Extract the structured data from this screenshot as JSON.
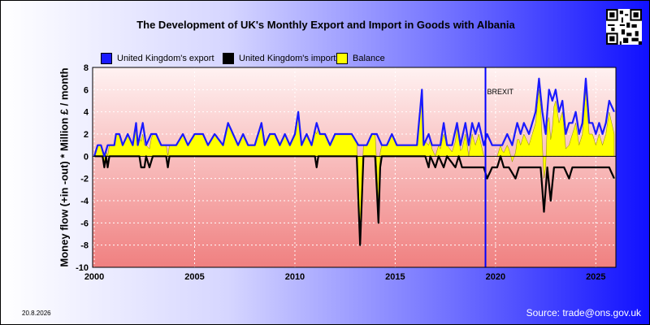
{
  "chart_data": {
    "type": "line",
    "title": "The Development of UK's Monthly Export and Import in Goods with Albania",
    "ylabel": "Money flow (+in -out) * Million £ / month",
    "xlabel": "",
    "x_ticks": [
      "2000",
      "2005",
      "2010",
      "2015",
      "2020",
      "2025"
    ],
    "y_ticks": [
      "8",
      "6",
      "4",
      "2",
      "0",
      "-2",
      "-4",
      "-6",
      "-8",
      "-10"
    ],
    "xlim": [
      "2000-01",
      "2025-12"
    ],
    "ylim": [
      -10,
      8
    ],
    "grid": true,
    "legend_position": "top",
    "annotation": {
      "label": "BREXIT",
      "x": "2019-07"
    },
    "series": [
      {
        "name": "United Kingdom's export",
        "color": "#1a1aff",
        "points": [
          [
            "2000-01",
            0
          ],
          [
            "2000-03",
            1
          ],
          [
            "2000-05",
            1
          ],
          [
            "2000-07",
            0
          ],
          [
            "2000-09",
            1
          ],
          [
            "2001-01",
            1
          ],
          [
            "2001-02",
            2
          ],
          [
            "2001-04",
            2
          ],
          [
            "2001-06",
            1
          ],
          [
            "2001-09",
            2
          ],
          [
            "2001-12",
            1
          ],
          [
            "2002-02",
            3
          ],
          [
            "2002-03",
            1
          ],
          [
            "2002-06",
            3
          ],
          [
            "2002-08",
            1
          ],
          [
            "2002-11",
            2
          ],
          [
            "2003-02",
            2
          ],
          [
            "2003-05",
            1
          ],
          [
            "2003-08",
            1
          ],
          [
            "2004-02",
            1
          ],
          [
            "2004-06",
            2
          ],
          [
            "2004-09",
            1
          ],
          [
            "2005-01",
            2
          ],
          [
            "2005-06",
            2
          ],
          [
            "2005-09",
            1
          ],
          [
            "2006-01",
            2
          ],
          [
            "2006-06",
            1
          ],
          [
            "2006-09",
            3
          ],
          [
            "2006-12",
            2
          ],
          [
            "2007-03",
            1
          ],
          [
            "2007-06",
            2
          ],
          [
            "2007-09",
            1
          ],
          [
            "2008-01",
            1
          ],
          [
            "2008-05",
            3
          ],
          [
            "2008-07",
            1
          ],
          [
            "2008-10",
            2
          ],
          [
            "2009-01",
            2
          ],
          [
            "2009-04",
            1
          ],
          [
            "2009-07",
            2
          ],
          [
            "2009-10",
            1
          ],
          [
            "2010-01",
            2
          ],
          [
            "2010-03",
            4
          ],
          [
            "2010-05",
            1
          ],
          [
            "2010-08",
            2
          ],
          [
            "2010-11",
            1
          ],
          [
            "2011-02",
            3
          ],
          [
            "2011-04",
            2
          ],
          [
            "2011-07",
            2
          ],
          [
            "2011-10",
            1
          ],
          [
            "2012-01",
            2
          ],
          [
            "2012-06",
            2
          ],
          [
            "2012-11",
            2
          ],
          [
            "2013-03",
            1
          ],
          [
            "2013-05",
            1
          ],
          [
            "2013-08",
            1
          ],
          [
            "2013-11",
            2
          ],
          [
            "2014-02",
            2
          ],
          [
            "2014-05",
            1
          ],
          [
            "2014-08",
            1
          ],
          [
            "2014-11",
            2
          ],
          [
            "2015-02",
            1
          ],
          [
            "2015-05",
            1
          ],
          [
            "2015-08",
            1
          ],
          [
            "2015-11",
            1
          ],
          [
            "2016-02",
            1
          ],
          [
            "2016-05",
            6
          ],
          [
            "2016-06",
            1
          ],
          [
            "2016-09",
            2
          ],
          [
            "2016-11",
            1
          ],
          [
            "2017-02",
            1
          ],
          [
            "2017-04",
            1
          ],
          [
            "2017-06",
            3
          ],
          [
            "2017-08",
            1
          ],
          [
            "2017-11",
            1
          ],
          [
            "2018-02",
            3
          ],
          [
            "2018-04",
            1
          ],
          [
            "2018-07",
            3
          ],
          [
            "2018-09",
            1
          ],
          [
            "2018-11",
            3
          ],
          [
            "2019-01",
            2
          ],
          [
            "2019-03",
            3
          ],
          [
            "2019-06",
            1
          ],
          [
            "2019-08",
            2
          ],
          [
            "2019-11",
            1
          ],
          [
            "2020-02",
            1
          ],
          [
            "2020-05",
            1
          ],
          [
            "2020-08",
            2
          ],
          [
            "2020-11",
            1
          ],
          [
            "2021-02",
            3
          ],
          [
            "2021-04",
            2
          ],
          [
            "2021-06",
            3
          ],
          [
            "2021-09",
            2
          ],
          [
            "2022-01",
            4
          ],
          [
            "2022-03",
            7
          ],
          [
            "2022-05",
            4
          ],
          [
            "2022-07",
            2
          ],
          [
            "2022-09",
            6
          ],
          [
            "2022-11",
            5
          ],
          [
            "2023-01",
            6
          ],
          [
            "2023-03",
            4
          ],
          [
            "2023-05",
            5
          ],
          [
            "2023-07",
            2
          ],
          [
            "2023-09",
            3
          ],
          [
            "2023-11",
            3
          ],
          [
            "2024-01",
            4
          ],
          [
            "2024-03",
            2
          ],
          [
            "2024-05",
            3
          ],
          [
            "2024-07",
            7
          ],
          [
            "2024-09",
            3
          ],
          [
            "2024-11",
            3
          ],
          [
            "2025-01",
            2
          ],
          [
            "2025-03",
            3
          ],
          [
            "2025-05",
            2
          ],
          [
            "2025-07",
            3
          ],
          [
            "2025-09",
            5
          ],
          [
            "2025-12",
            4
          ]
        ]
      },
      {
        "name": "United Kingdom's import",
        "color": "#000000",
        "points": [
          [
            "2000-01",
            0
          ],
          [
            "2000-06",
            0
          ],
          [
            "2000-07",
            -1
          ],
          [
            "2000-08",
            0
          ],
          [
            "2000-09",
            -1
          ],
          [
            "2000-10",
            0
          ],
          [
            "2002-04",
            0
          ],
          [
            "2002-05",
            -1
          ],
          [
            "2002-07",
            -1
          ],
          [
            "2002-08",
            0
          ],
          [
            "2002-10",
            -1
          ],
          [
            "2002-12",
            0
          ],
          [
            "2003-08",
            0
          ],
          [
            "2003-09",
            -1
          ],
          [
            "2003-10",
            0
          ],
          [
            "2011-01",
            0
          ],
          [
            "2011-02",
            -1
          ],
          [
            "2011-03",
            0
          ],
          [
            "2013-02",
            0
          ],
          [
            "2013-04",
            -8
          ],
          [
            "2013-06",
            0
          ],
          [
            "2014-01",
            0
          ],
          [
            "2014-03",
            -6
          ],
          [
            "2014-04",
            -1
          ],
          [
            "2014-05",
            0
          ],
          [
            "2016-07",
            0
          ],
          [
            "2016-09",
            -1
          ],
          [
            "2016-10",
            0
          ],
          [
            "2017-01",
            -1
          ],
          [
            "2017-03",
            0
          ],
          [
            "2017-06",
            -1
          ],
          [
            "2017-08",
            0
          ],
          [
            "2018-01",
            -1
          ],
          [
            "2018-03",
            0
          ],
          [
            "2018-05",
            -1
          ],
          [
            "2018-08",
            -1
          ],
          [
            "2019-01",
            -1
          ],
          [
            "2019-06",
            -1
          ],
          [
            "2019-08",
            -2
          ],
          [
            "2019-11",
            -1
          ],
          [
            "2020-02",
            -1
          ],
          [
            "2020-04",
            0
          ],
          [
            "2020-06",
            -1
          ],
          [
            "2020-09",
            -1
          ],
          [
            "2021-01",
            -2
          ],
          [
            "2021-03",
            -1
          ],
          [
            "2022-04",
            -1
          ],
          [
            "2022-06",
            -5
          ],
          [
            "2022-08",
            -1
          ],
          [
            "2022-10",
            -4
          ],
          [
            "2022-12",
            -1
          ],
          [
            "2023-06",
            -1
          ],
          [
            "2023-09",
            -2
          ],
          [
            "2023-11",
            -1
          ],
          [
            "2024-06",
            -1
          ],
          [
            "2025-09",
            -1
          ],
          [
            "2025-12",
            -2
          ]
        ]
      },
      {
        "name": "Balance",
        "color": "#ffff00"
      }
    ]
  },
  "footer": {
    "date": "20.8.2026",
    "source": "Source: trade@ons.gov.uk"
  },
  "icons": {
    "qr": "qr-code-icon"
  }
}
